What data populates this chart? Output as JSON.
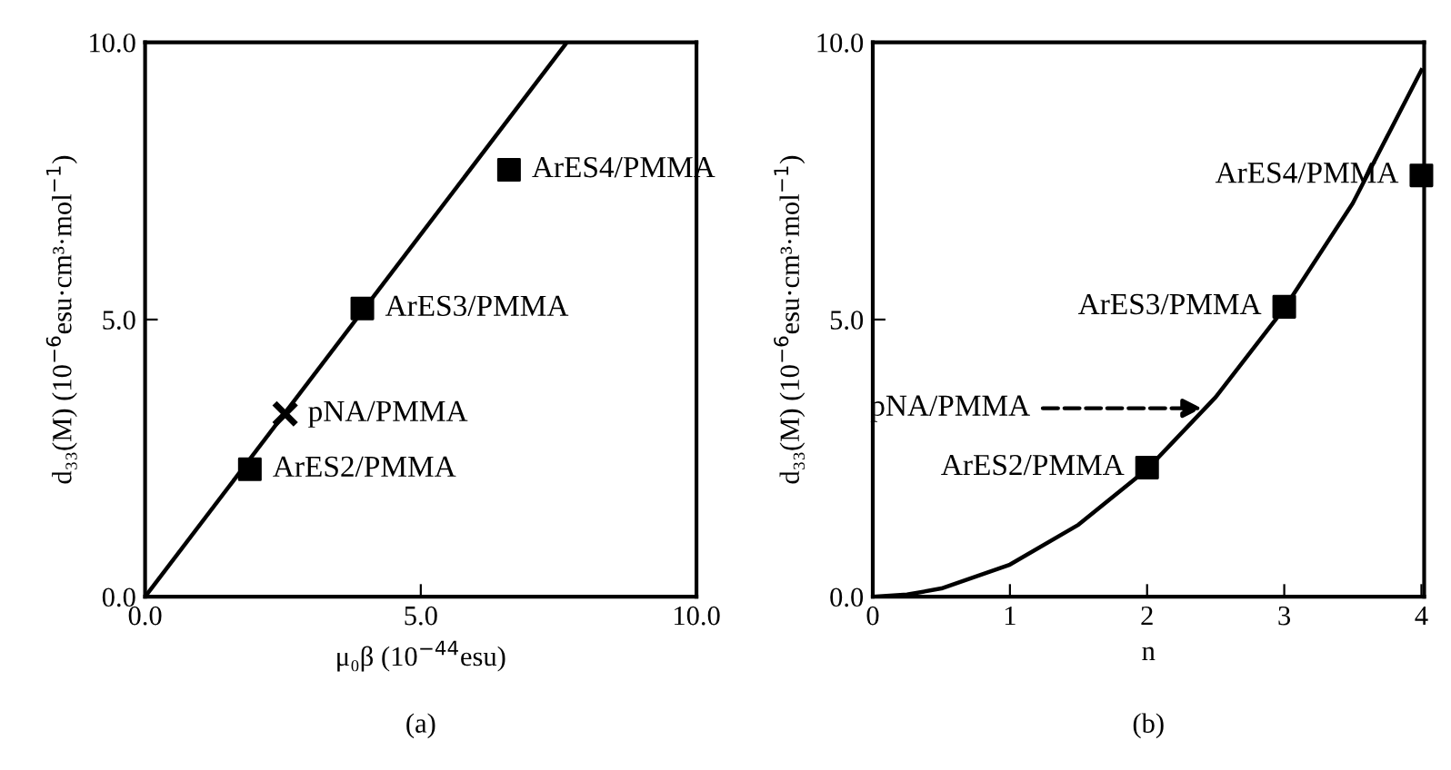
{
  "chart_data": [
    {
      "type": "scatter",
      "xlabel": "μ₀β (10$^{−44}$esu)",
      "ylabel": "d₃₃(M) (10$^{−6}$esu·cm³·mol$^{−1}$)",
      "xlim": [
        0,
        10
      ],
      "ylim": [
        0,
        10
      ],
      "xticks": [
        {
          "value": 0,
          "label": "0.0"
        },
        {
          "value": 5,
          "label": "5.0"
        },
        {
          "value": 10,
          "label": "10.0"
        }
      ],
      "yticks": [
        {
          "value": 0,
          "label": "0.0"
        },
        {
          "value": 5,
          "label": "5.0"
        },
        {
          "value": 10,
          "label": "10.0"
        }
      ],
      "grid": false,
      "series": [
        {
          "type": "scatter",
          "marker": "square",
          "color": "#000000",
          "x": [
            1.9,
            3.94,
            6.6
          ],
          "values": [
            2.3,
            5.2,
            7.7
          ]
        },
        {
          "type": "scatter",
          "marker": "cross",
          "color": "#000000",
          "x": [
            2.54
          ],
          "values": [
            3.3
          ]
        },
        {
          "type": "line",
          "marker": "none",
          "line_style": "solid",
          "color": "#000000",
          "x": [
            0,
            7.65
          ],
          "values": [
            0,
            10
          ]
        }
      ],
      "annotations": [
        {
          "text": "ArES2/PMMA",
          "x": 1.9,
          "y": 2.3
        },
        {
          "text": "pNA/PMMA",
          "x": 2.54,
          "y": 3.3
        },
        {
          "text": "ArES3/PMMA",
          "x": 3.94,
          "y": 5.2
        },
        {
          "text": "ArES4/PMMA",
          "x": 6.6,
          "y": 7.7
        },
        "(a)"
      ]
    },
    {
      "type": "scatter",
      "xlabel": "n",
      "ylabel": "d₃₃(M) (10$^{−6}$esu·cm³·mol$^{−1}$)",
      "xlim": [
        0,
        4.02
      ],
      "ylim": [
        0,
        10
      ],
      "xticks": [
        0,
        1,
        2,
        3,
        4
      ],
      "yticks": [
        {
          "value": 0,
          "label": "0.0"
        },
        {
          "value": 5,
          "label": "5.0"
        },
        {
          "value": 10,
          "label": "10.0"
        }
      ],
      "grid": false,
      "series": [
        {
          "type": "scatter",
          "marker": "square",
          "color": "#000000",
          "x": [
            2,
            3,
            4
          ],
          "values": [
            2.33,
            5.23,
            7.6
          ]
        },
        {
          "type": "line",
          "marker": "none",
          "line_style": "solid",
          "color": "#000000",
          "x": [
            0,
            0.25,
            0.5,
            1,
            1.5,
            2,
            2.5,
            3,
            3.5,
            4
          ],
          "values": [
            0,
            0.04,
            0.15,
            0.58,
            1.3,
            2.3,
            3.6,
            5.2,
            7.1,
            9.5
          ]
        }
      ],
      "annotations": [
        {
          "text": "ArES2/PMMA",
          "x": 2,
          "y": 2.33
        },
        {
          "text": "pNA/PMMA",
          "x": 2.4,
          "y": 3.4
        },
        {
          "text": "ArES3/PMMA",
          "x": 3,
          "y": 5.23
        },
        {
          "text": "ArES4/PMMA",
          "x": 4,
          "y": 7.6
        },
        "(b)"
      ]
    }
  ]
}
